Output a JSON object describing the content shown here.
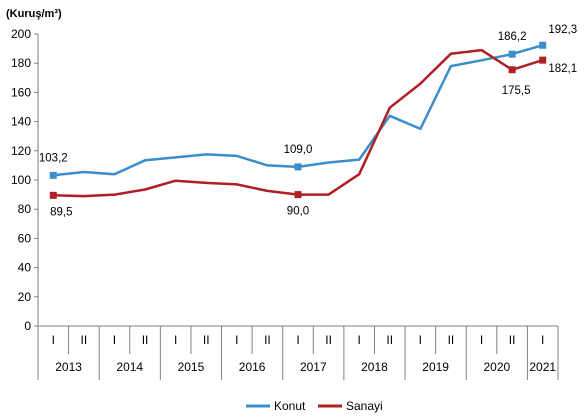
{
  "chart_data": {
    "type": "line",
    "unit_label": "(Kuruş/m³)",
    "ylim": [
      0,
      200
    ],
    "yticks": [
      0,
      20,
      40,
      60,
      80,
      100,
      120,
      140,
      160,
      180,
      200
    ],
    "grid": false,
    "legend_position": "bottom",
    "x": [
      "2013-I",
      "2013-II",
      "2014-I",
      "2014-II",
      "2015-I",
      "2015-II",
      "2016-I",
      "2016-II",
      "2017-I",
      "2017-II",
      "2018-I",
      "2018-II",
      "2019-I",
      "2019-II",
      "2020-I",
      "2020-II",
      "2021-I"
    ],
    "half_labels": [
      "I",
      "II",
      "I",
      "II",
      "I",
      "II",
      "I",
      "II",
      "I",
      "II",
      "I",
      "II",
      "I",
      "II",
      "I",
      "II",
      "I"
    ],
    "years": [
      {
        "label": "2013",
        "span": 2
      },
      {
        "label": "2014",
        "span": 2
      },
      {
        "label": "2015",
        "span": 2
      },
      {
        "label": "2016",
        "span": 2
      },
      {
        "label": "2017",
        "span": 2
      },
      {
        "label": "2018",
        "span": 2
      },
      {
        "label": "2019",
        "span": 2
      },
      {
        "label": "2020",
        "span": 2
      },
      {
        "label": "2021",
        "span": 1
      }
    ],
    "series": [
      {
        "name": "Konut",
        "color": "#3c8dcc",
        "values": [
          103.2,
          105.5,
          104.0,
          113.5,
          115.5,
          117.5,
          116.5,
          110.0,
          109.0,
          112.0,
          114.0,
          144.0,
          135.0,
          178.0,
          182.0,
          186.2,
          192.3
        ],
        "labels": [
          {
            "index": 0,
            "text": "103,2"
          },
          {
            "index": 8,
            "text": "109,0"
          },
          {
            "index": 15,
            "text": "186,2"
          },
          {
            "index": 16,
            "text": "192,3"
          }
        ]
      },
      {
        "name": "Sanayi",
        "color": "#b01f24",
        "values": [
          89.5,
          89.0,
          90.0,
          93.5,
          99.5,
          98.0,
          97.0,
          92.5,
          90.0,
          90.0,
          104.0,
          149.5,
          166.0,
          186.5,
          189.0,
          175.5,
          182.1
        ],
        "labels": [
          {
            "index": 0,
            "text": "89,5"
          },
          {
            "index": 8,
            "text": "90,0"
          },
          {
            "index": 15,
            "text": "175,5"
          },
          {
            "index": 16,
            "text": "182,1"
          }
        ]
      }
    ]
  }
}
